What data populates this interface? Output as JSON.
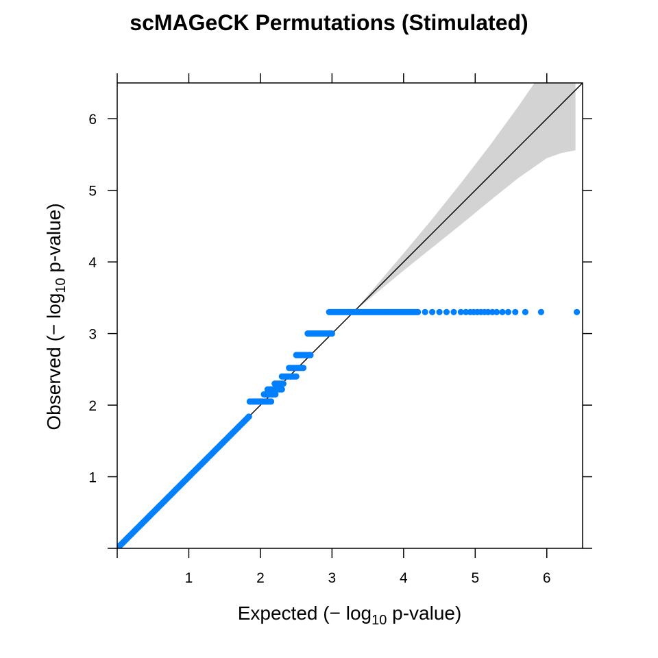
{
  "chart_data": {
    "type": "scatter",
    "title": "scMAGeCK Permutations (Stimulated)",
    "xlabel": {
      "prefix": "Expected (",
      "minus": "−",
      "log": " log",
      "sub": "10",
      "suffix": " p-value)"
    },
    "ylabel": {
      "prefix": "Observed (",
      "minus": "−",
      "log": " log",
      "sub": "10",
      "suffix": " p-value)"
    },
    "xlim": [
      0,
      6.5
    ],
    "ylim": [
      0,
      6.5
    ],
    "x_ticks": [
      1,
      2,
      3,
      4,
      5,
      6
    ],
    "y_ticks": [
      1,
      2,
      3,
      4,
      5,
      6
    ],
    "tick_labels_x": [
      "1",
      "2",
      "3",
      "4",
      "5",
      "6"
    ],
    "tick_labels_y": [
      "1",
      "2",
      "3",
      "4",
      "5",
      "6"
    ],
    "point_color": "#0080ff",
    "band_color": "#d3d3d3",
    "reference_line": {
      "from": [
        0,
        0
      ],
      "to": [
        6.5,
        6.5
      ],
      "color": "#000000"
    },
    "confidence_band": {
      "x": [
        3.3,
        3.6,
        4.0,
        4.4,
        4.8,
        5.2,
        5.6,
        6.0,
        6.2,
        6.4
      ],
      "upper": [
        3.3,
        3.65,
        4.12,
        4.6,
        5.1,
        5.62,
        6.17,
        6.75,
        7.0,
        7.3
      ],
      "lower": [
        3.3,
        3.55,
        3.88,
        4.2,
        4.52,
        4.85,
        5.17,
        5.45,
        5.52,
        5.56
      ]
    },
    "diagonal_points": {
      "from": 0.0,
      "to": 1.85,
      "step": 0.02
    },
    "steps": [
      {
        "x_from": 1.85,
        "x_to": 2.15,
        "y": 2.05
      },
      {
        "x_from": 2.05,
        "x_to": 2.22,
        "y": 2.15
      },
      {
        "x_from": 2.1,
        "x_to": 2.3,
        "y": 2.22
      },
      {
        "x_from": 2.2,
        "x_to": 2.33,
        "y": 2.3
      },
      {
        "x_from": 2.3,
        "x_to": 2.5,
        "y": 2.4
      },
      {
        "x_from": 2.4,
        "x_to": 2.6,
        "y": 2.52
      },
      {
        "x_from": 2.5,
        "x_to": 2.7,
        "y": 2.7
      },
      {
        "x_from": 2.66,
        "x_to": 3.0,
        "y": 3.0
      },
      {
        "x_from": 2.96,
        "x_to": 4.2,
        "y": 3.3
      }
    ],
    "tail_points": {
      "y": 3.3,
      "x": [
        4.3,
        4.4,
        4.5,
        4.6,
        4.7,
        4.8,
        4.87,
        4.93,
        4.98,
        5.03,
        5.08,
        5.13,
        5.18,
        5.24,
        5.3,
        5.38,
        5.46,
        5.56,
        5.7,
        5.92,
        6.42
      ]
    }
  }
}
